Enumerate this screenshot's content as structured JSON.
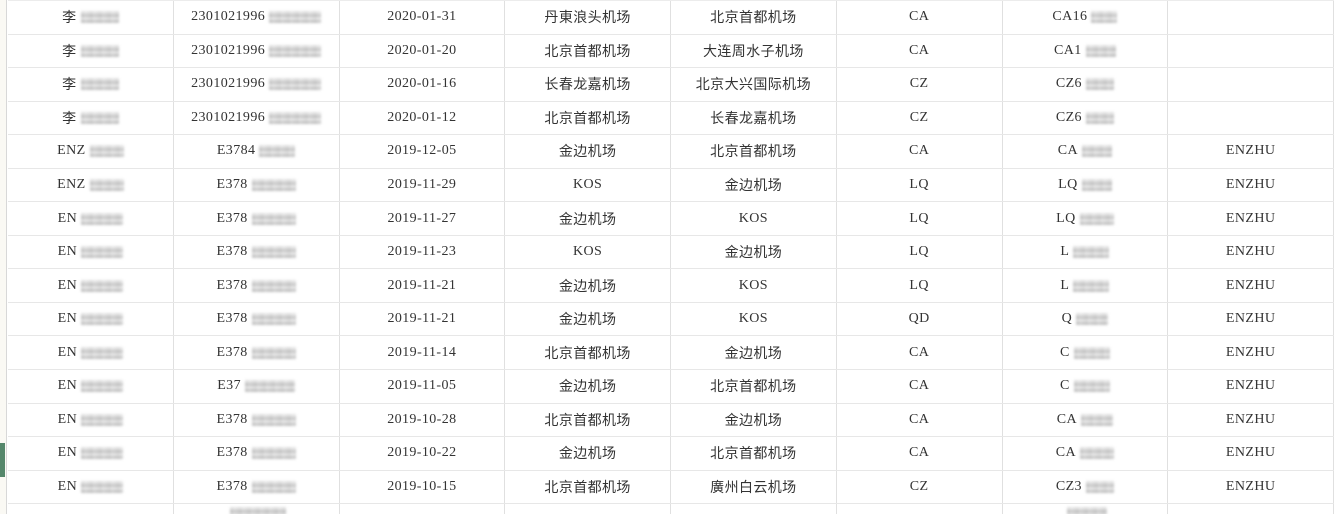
{
  "colors": {
    "accent_green": "#55876b",
    "row_border": "#e7e7e7",
    "column_border": "#e0e0e0",
    "text": "#333333",
    "margin_background": "#faf9f4",
    "redaction_dark": "#cccccc",
    "redaction_light": "#e6e6e6"
  },
  "table": {
    "column_semantics": [
      "name",
      "id-number",
      "date",
      "departure-airport",
      "arrival-airport",
      "airline-code",
      "flight-number",
      "passenger-tag"
    ],
    "rows": [
      [
        {
          "t": "李",
          "b": 38
        },
        {
          "t": "2301021996",
          "b": 52
        },
        {
          "t": "2020-01-31"
        },
        {
          "t": "丹東浪头机场"
        },
        {
          "t": "北京首都机场"
        },
        {
          "t": "CA"
        },
        {
          "t": "CA16",
          "b": 26
        },
        {
          "t": ""
        }
      ],
      [
        {
          "t": "李",
          "b": 38
        },
        {
          "t": "2301021996",
          "b": 52
        },
        {
          "t": "2020-01-20"
        },
        {
          "t": "北京首都机场"
        },
        {
          "t": "大连周水子机场"
        },
        {
          "t": "CA"
        },
        {
          "t": "CA1",
          "b": 30
        },
        {
          "t": ""
        }
      ],
      [
        {
          "t": "李",
          "b": 38
        },
        {
          "t": "2301021996",
          "b": 52
        },
        {
          "t": "2020-01-16"
        },
        {
          "t": "长春龙嘉机场"
        },
        {
          "t": "北京大兴国际机场"
        },
        {
          "t": "CZ"
        },
        {
          "t": "CZ6",
          "b": 28
        },
        {
          "t": ""
        }
      ],
      [
        {
          "t": "李",
          "b": 38
        },
        {
          "t": "2301021996",
          "b": 52
        },
        {
          "t": "2020-01-12"
        },
        {
          "t": "北京首都机场"
        },
        {
          "t": "长春龙嘉机场"
        },
        {
          "t": "CZ"
        },
        {
          "t": "CZ6",
          "b": 28
        },
        {
          "t": ""
        }
      ],
      [
        {
          "t": "ENZ",
          "b": 34
        },
        {
          "t": "E3784",
          "b": 36
        },
        {
          "t": "2019-12-05"
        },
        {
          "t": "金边机场"
        },
        {
          "t": "北京首都机场"
        },
        {
          "t": "CA"
        },
        {
          "t": "CA",
          "b": 30
        },
        {
          "t": "ENZHU"
        }
      ],
      [
        {
          "t": "ENZ",
          "b": 34
        },
        {
          "t": "E378",
          "b": 44
        },
        {
          "t": "2019-11-29"
        },
        {
          "t": "KOS"
        },
        {
          "t": "金边机场"
        },
        {
          "t": "LQ"
        },
        {
          "t": "LQ",
          "b": 30
        },
        {
          "t": "ENZHU"
        }
      ],
      [
        {
          "t": "EN",
          "b": 42
        },
        {
          "t": "E378",
          "b": 44
        },
        {
          "t": "2019-11-27"
        },
        {
          "t": "金边机场"
        },
        {
          "t": "KOS"
        },
        {
          "t": "LQ"
        },
        {
          "t": "LQ",
          "b": 34
        },
        {
          "t": "ENZHU"
        }
      ],
      [
        {
          "t": "EN",
          "b": 42
        },
        {
          "t": "E378",
          "b": 44
        },
        {
          "t": "2019-11-23"
        },
        {
          "t": "KOS"
        },
        {
          "t": "金边机场"
        },
        {
          "t": "LQ"
        },
        {
          "t": "L",
          "b": 36
        },
        {
          "t": "ENZHU"
        }
      ],
      [
        {
          "t": "EN",
          "b": 42
        },
        {
          "t": "E378",
          "b": 44
        },
        {
          "t": "2019-11-21"
        },
        {
          "t": "金边机场"
        },
        {
          "t": "KOS"
        },
        {
          "t": "LQ"
        },
        {
          "t": "L",
          "b": 36
        },
        {
          "t": "ENZHU"
        }
      ],
      [
        {
          "t": "EN",
          "b": 42
        },
        {
          "t": "E378",
          "b": 44
        },
        {
          "t": "2019-11-21"
        },
        {
          "t": "金边机场"
        },
        {
          "t": "KOS"
        },
        {
          "t": "QD"
        },
        {
          "t": "Q",
          "b": 32
        },
        {
          "t": "ENZHU"
        }
      ],
      [
        {
          "t": "EN",
          "b": 42
        },
        {
          "t": "E378",
          "b": 44
        },
        {
          "t": "2019-11-14"
        },
        {
          "t": "北京首都机场"
        },
        {
          "t": "金边机场"
        },
        {
          "t": "CA"
        },
        {
          "t": "C",
          "b": 36
        },
        {
          "t": "ENZHU"
        }
      ],
      [
        {
          "t": "EN",
          "b": 42
        },
        {
          "t": "E37",
          "b": 50
        },
        {
          "t": "2019-11-05"
        },
        {
          "t": "金边机场"
        },
        {
          "t": "北京首都机场"
        },
        {
          "t": "CA"
        },
        {
          "t": "C",
          "b": 36
        },
        {
          "t": "ENZHU"
        }
      ],
      [
        {
          "t": "EN",
          "b": 42
        },
        {
          "t": "E378",
          "b": 44
        },
        {
          "t": "2019-10-28"
        },
        {
          "t": "北京首都机场"
        },
        {
          "t": "金边机场"
        },
        {
          "t": "CA"
        },
        {
          "t": "CA",
          "b": 32
        },
        {
          "t": "ENZHU"
        }
      ],
      [
        {
          "t": "EN",
          "b": 42
        },
        {
          "t": "E378",
          "b": 44
        },
        {
          "t": "2019-10-22"
        },
        {
          "t": "金边机场"
        },
        {
          "t": "北京首都机场"
        },
        {
          "t": "CA"
        },
        {
          "t": "CA",
          "b": 34
        },
        {
          "t": "ENZHU"
        }
      ],
      [
        {
          "t": "EN",
          "b": 42
        },
        {
          "t": "E378",
          "b": 44
        },
        {
          "t": "2019-10-15"
        },
        {
          "t": "北京首都机场"
        },
        {
          "t": "廣州白云机场"
        },
        {
          "t": "CZ"
        },
        {
          "t": "CZ3",
          "b": 28
        },
        {
          "t": "ENZHU"
        }
      ]
    ],
    "partial_row": [
      {
        "t": ""
      },
      {
        "t": "",
        "b": 56
      },
      {
        "t": ""
      },
      {
        "t": ""
      },
      {
        "t": ""
      },
      {
        "t": ""
      },
      {
        "t": "",
        "b": 40
      },
      {
        "t": ""
      }
    ]
  }
}
